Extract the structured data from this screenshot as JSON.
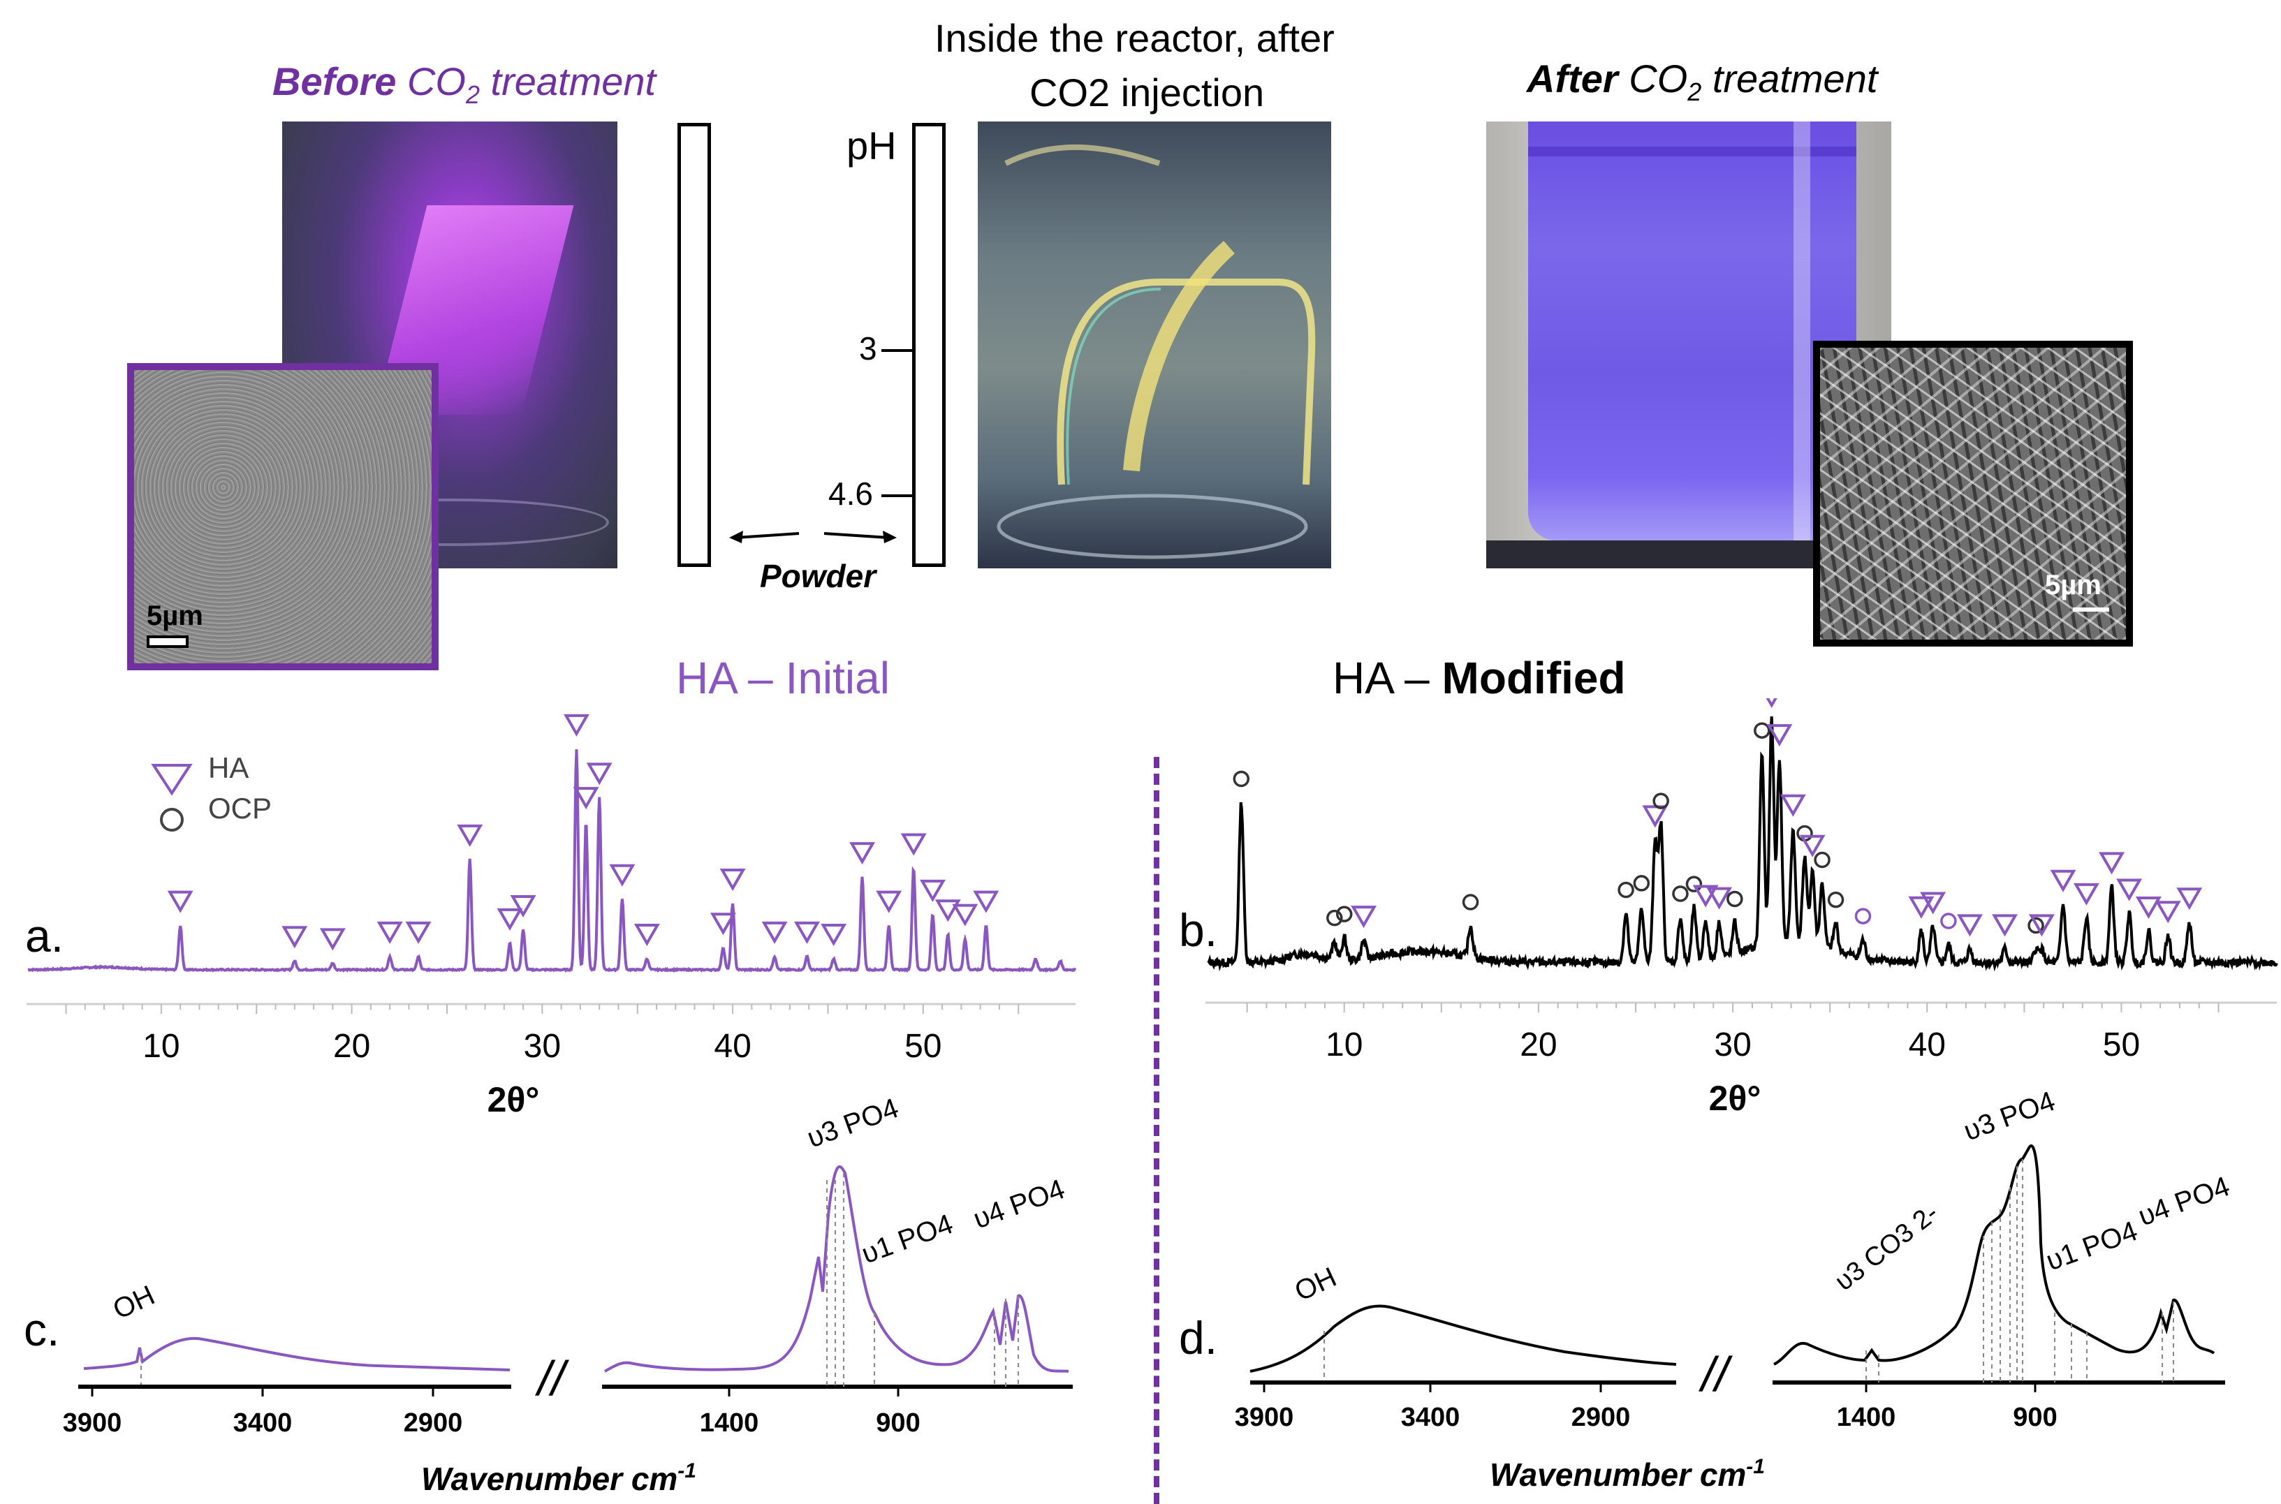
{
  "top": {
    "before_caption_bold": "Before",
    "before_caption_rest": "CO",
    "before_caption_sub": "2",
    "before_caption_tail": "treatment",
    "reactor_caption_line1": "Inside the reactor, after",
    "reactor_caption_line2": "CO2 injection",
    "after_caption_bold": "After",
    "after_caption_rest": "CO",
    "after_caption_sub": "2",
    "after_caption_tail": "treatment",
    "ph_label": "pH",
    "ph_tick_1": "3",
    "ph_tick_2": "4.6",
    "powder_label": "Powder",
    "scale_before": "5µm",
    "scale_after": "5µm"
  },
  "colors": {
    "purple": "#7030a0",
    "violet": "#8a56c0",
    "black": "#000000"
  },
  "icons": [
    "triangle-down-marker",
    "circle-marker",
    "double-arrow"
  ],
  "chart_data": [
    {
      "type": "line",
      "panel": "a.",
      "title_prefix": "HA – Initial",
      "xlabel": "2θ°",
      "xlim": [
        3,
        58
      ],
      "xticks": [
        "10",
        "20",
        "30",
        "40",
        "50"
      ],
      "legend": [
        "HA",
        "OCP"
      ],
      "peaks": [
        {
          "x": 11.0,
          "h": 0.2,
          "m": "tri"
        },
        {
          "x": 17.0,
          "h": 0.04,
          "m": "tri"
        },
        {
          "x": 19.0,
          "h": 0.03,
          "m": "tri"
        },
        {
          "x": 22.0,
          "h": 0.06,
          "m": "tri"
        },
        {
          "x": 23.5,
          "h": 0.06,
          "m": "tri"
        },
        {
          "x": 26.2,
          "h": 0.5,
          "m": "tri"
        },
        {
          "x": 28.3,
          "h": 0.12,
          "m": "tri"
        },
        {
          "x": 29.0,
          "h": 0.18,
          "m": "tri"
        },
        {
          "x": 31.8,
          "h": 1.0,
          "m": "tri"
        },
        {
          "x": 32.3,
          "h": 0.67,
          "m": "tri"
        },
        {
          "x": 33.0,
          "h": 0.78,
          "m": "tri"
        },
        {
          "x": 34.2,
          "h": 0.32,
          "m": "tri"
        },
        {
          "x": 35.5,
          "h": 0.05,
          "m": "tri"
        },
        {
          "x": 39.5,
          "h": 0.1,
          "m": "tri"
        },
        {
          "x": 40.0,
          "h": 0.3,
          "m": "tri"
        },
        {
          "x": 42.2,
          "h": 0.06,
          "m": "tri"
        },
        {
          "x": 43.9,
          "h": 0.06,
          "m": "tri"
        },
        {
          "x": 45.3,
          "h": 0.05,
          "m": "tri"
        },
        {
          "x": 46.8,
          "h": 0.42,
          "m": "tri"
        },
        {
          "x": 48.2,
          "h": 0.2,
          "m": "tri"
        },
        {
          "x": 49.5,
          "h": 0.46,
          "m": "tri"
        },
        {
          "x": 50.5,
          "h": 0.25,
          "m": "tri"
        },
        {
          "x": 51.3,
          "h": 0.16,
          "m": "tri"
        },
        {
          "x": 52.2,
          "h": 0.14,
          "m": "tri"
        },
        {
          "x": 53.3,
          "h": 0.2,
          "m": "tri"
        },
        {
          "x": 55.9,
          "h": 0.05,
          "m": ""
        },
        {
          "x": 57.2,
          "h": 0.04,
          "m": ""
        }
      ]
    },
    {
      "type": "line",
      "panel": "b.",
      "title_prefix": "HA – ",
      "title_bold": "Modified",
      "xlabel": "2θ°",
      "xlim": [
        3,
        58
      ],
      "xticks": [
        "10",
        "20",
        "30",
        "40",
        "50"
      ],
      "peaks": [
        {
          "x": 4.7,
          "h": 0.72,
          "m": "circ"
        },
        {
          "x": 9.5,
          "h": 0.08,
          "m": "circ"
        },
        {
          "x": 10.0,
          "h": 0.1,
          "m": "circ"
        },
        {
          "x": 11.0,
          "h": 0.08,
          "m": "tri"
        },
        {
          "x": 16.5,
          "h": 0.14,
          "m": "circ"
        },
        {
          "x": 24.5,
          "h": 0.22,
          "m": "circ"
        },
        {
          "x": 25.3,
          "h": 0.25,
          "m": "circ"
        },
        {
          "x": 26.0,
          "h": 0.55,
          "m": "tri"
        },
        {
          "x": 26.3,
          "h": 0.62,
          "m": "circ"
        },
        {
          "x": 27.3,
          "h": 0.2,
          "m": "circ"
        },
        {
          "x": 28.0,
          "h": 0.24,
          "m": "circ"
        },
        {
          "x": 28.6,
          "h": 0.18,
          "m": "tri"
        },
        {
          "x": 29.3,
          "h": 0.16,
          "m": "tri"
        },
        {
          "x": 30.1,
          "h": 0.14,
          "m": "circ"
        },
        {
          "x": 31.5,
          "h": 0.86,
          "m": "circ"
        },
        {
          "x": 32.0,
          "h": 1.0,
          "m": "tri"
        },
        {
          "x": 32.4,
          "h": 0.82,
          "m": "tri"
        },
        {
          "x": 33.1,
          "h": 0.5,
          "m": "tri"
        },
        {
          "x": 33.7,
          "h": 0.38,
          "m": "circ"
        },
        {
          "x": 34.1,
          "h": 0.33,
          "m": "tri"
        },
        {
          "x": 34.6,
          "h": 0.28,
          "m": "circ"
        },
        {
          "x": 35.3,
          "h": 0.12,
          "m": "circ"
        },
        {
          "x": 36.7,
          "h": 0.08,
          "m": "circ"
        },
        {
          "x": 39.7,
          "h": 0.14,
          "m": "tri"
        },
        {
          "x": 40.3,
          "h": 0.16,
          "m": "tri"
        },
        {
          "x": 41.1,
          "h": 0.08,
          "m": "circ"
        },
        {
          "x": 42.2,
          "h": 0.06,
          "m": "tri"
        },
        {
          "x": 44.0,
          "h": 0.06,
          "m": "tri"
        },
        {
          "x": 45.6,
          "h": 0.06,
          "m": "circ"
        },
        {
          "x": 45.9,
          "h": 0.06,
          "m": "tri"
        },
        {
          "x": 47.0,
          "h": 0.26,
          "m": "tri"
        },
        {
          "x": 48.2,
          "h": 0.2,
          "m": "tri"
        },
        {
          "x": 49.5,
          "h": 0.34,
          "m": "tri"
        },
        {
          "x": 50.4,
          "h": 0.22,
          "m": "tri"
        },
        {
          "x": 51.4,
          "h": 0.14,
          "m": "tri"
        },
        {
          "x": 52.4,
          "h": 0.12,
          "m": "tri"
        },
        {
          "x": 53.5,
          "h": 0.18,
          "m": "tri"
        }
      ]
    },
    {
      "type": "line",
      "panel": "c.",
      "xlabel": "Wavenumber cm",
      "xlabel_sup": "-1",
      "xticks": [
        "3900",
        "3400",
        "2900",
        "1400",
        "900"
      ],
      "labels": [
        "OH",
        "υ3 PO4",
        "υ1 PO4",
        "υ4 PO4"
      ],
      "break_symbol": "//"
    },
    {
      "type": "line",
      "panel": "d.",
      "xlabel": "Wavenumber cm",
      "xlabel_sup": "-1",
      "xticks": [
        "3900",
        "3400",
        "2900",
        "1400",
        "900"
      ],
      "labels": [
        "OH",
        "υ3 CO3 2-",
        "υ3 PO4",
        "υ1 PO4",
        "υ4 PO4"
      ],
      "break_symbol": "//"
    }
  ]
}
